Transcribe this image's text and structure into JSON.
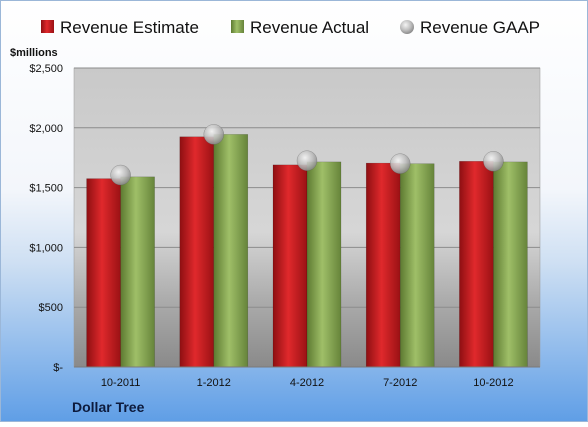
{
  "chart_data": {
    "type": "bar",
    "unit_label": "$millions",
    "categories": [
      "10-2011",
      "1-2012",
      "4-2012",
      "7-2012",
      "10-2012"
    ],
    "series": [
      {
        "name": "Revenue Estimate",
        "kind": "bar",
        "color": "#c8191c",
        "values": [
          1575,
          1925,
          1690,
          1705,
          1720
        ]
      },
      {
        "name": "Revenue Actual",
        "kind": "bar",
        "color": "#8fad5a",
        "values": [
          1590,
          1945,
          1715,
          1700,
          1715
        ]
      },
      {
        "name": "Revenue GAAP",
        "kind": "marker",
        "color": "#b8b8b8",
        "values": [
          1605,
          1945,
          1725,
          1700,
          1720
        ]
      }
    ],
    "yticks": [
      0,
      500,
      1000,
      1500,
      2000,
      2500
    ],
    "ytick_labels": [
      "$-",
      "$500",
      "$1,000",
      "$1,500",
      "$2,000",
      "$2,500"
    ],
    "ylim": [
      0,
      2500
    ],
    "grid": true,
    "legend_position": "top"
  },
  "company": "Dollar Tree"
}
